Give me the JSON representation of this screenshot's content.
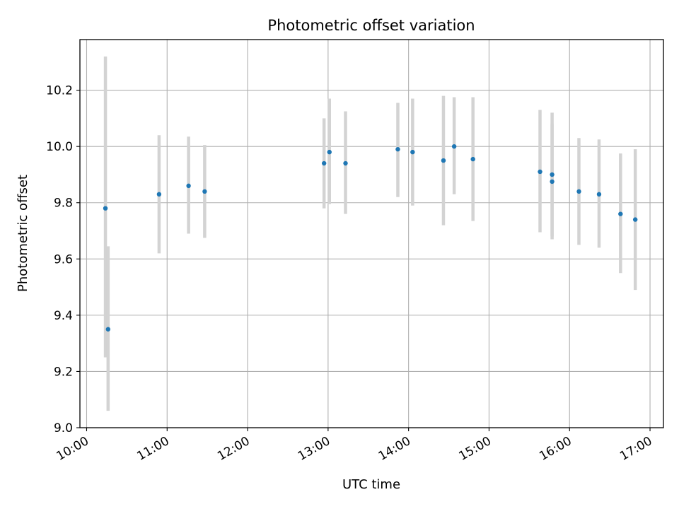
{
  "chart_data": {
    "type": "scatter",
    "title": "Photometric offset variation",
    "xlabel": "UTC time",
    "ylabel": "Photometric offset",
    "xlim": [
      "09:55",
      "17:10"
    ],
    "ylim": [
      9.0,
      10.38
    ],
    "grid": true,
    "x_ticks": [
      "10:00",
      "11:00",
      "12:00",
      "13:00",
      "14:00",
      "15:00",
      "16:00",
      "17:00"
    ],
    "y_ticks": [
      "9.0",
      "9.2",
      "9.4",
      "9.6",
      "9.8",
      "10.0",
      "10.2"
    ],
    "colors": {
      "marker": "#1f77b4",
      "errorbar": "#d3d3d3",
      "grid": "#b0b0b0"
    },
    "series": [
      {
        "points": [
          {
            "x": "10:14",
            "y": 9.78,
            "ylo": 9.25,
            "yhi": 10.32
          },
          {
            "x": "10:16",
            "y": 9.35,
            "ylo": 9.06,
            "yhi": 9.645
          },
          {
            "x": "10:54",
            "y": 9.83,
            "ylo": 9.62,
            "yhi": 10.04
          },
          {
            "x": "11:16",
            "y": 9.86,
            "ylo": 9.69,
            "yhi": 10.035
          },
          {
            "x": "11:28",
            "y": 9.84,
            "ylo": 9.675,
            "yhi": 10.005
          },
          {
            "x": "12:57",
            "y": 9.94,
            "ylo": 9.78,
            "yhi": 10.1
          },
          {
            "x": "13:01",
            "y": 9.98,
            "ylo": 9.795,
            "yhi": 10.17
          },
          {
            "x": "13:13",
            "y": 9.94,
            "ylo": 9.76,
            "yhi": 10.125
          },
          {
            "x": "13:52",
            "y": 9.99,
            "ylo": 9.82,
            "yhi": 10.155
          },
          {
            "x": "14:03",
            "y": 9.98,
            "ylo": 9.79,
            "yhi": 10.17
          },
          {
            "x": "14:26",
            "y": 9.95,
            "ylo": 9.72,
            "yhi": 10.18
          },
          {
            "x": "14:34",
            "y": 10.0,
            "ylo": 9.83,
            "yhi": 10.175
          },
          {
            "x": "14:48",
            "y": 9.955,
            "ylo": 9.735,
            "yhi": 10.175
          },
          {
            "x": "15:38",
            "y": 9.91,
            "ylo": 9.695,
            "yhi": 10.13
          },
          {
            "x": "15:47",
            "y": 9.875,
            "ylo": 9.67,
            "yhi": 10.08
          },
          {
            "x": "15:47",
            "y": 9.9,
            "ylo": 9.68,
            "yhi": 10.12
          },
          {
            "x": "16:07",
            "y": 9.84,
            "ylo": 9.65,
            "yhi": 10.03
          },
          {
            "x": "16:22",
            "y": 9.83,
            "ylo": 9.64,
            "yhi": 10.025
          },
          {
            "x": "16:38",
            "y": 9.76,
            "ylo": 9.55,
            "yhi": 9.975
          },
          {
            "x": "16:49",
            "y": 9.74,
            "ylo": 9.49,
            "yhi": 9.99
          }
        ]
      }
    ]
  }
}
